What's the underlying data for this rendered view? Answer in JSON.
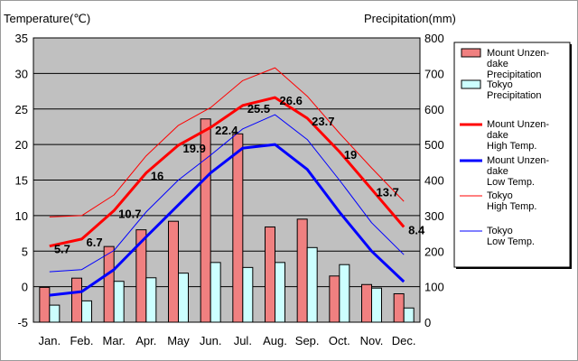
{
  "chart_data": {
    "type": "bar+line",
    "left_axis_title": "Temperature(℃)",
    "right_axis_title": "Precipitation(mm)",
    "categories": [
      "Jan.",
      "Feb.",
      "Mar.",
      "Apr.",
      "May",
      "Jun.",
      "Jul.",
      "Aug.",
      "Sep.",
      "Oct.",
      "Nov.",
      "Dec."
    ],
    "y_left": {
      "min": -5,
      "max": 35,
      "ticks": [
        -5,
        0,
        5,
        10,
        15,
        20,
        25,
        30,
        35
      ]
    },
    "y_right": {
      "min": 0,
      "max": 800,
      "ticks": [
        0,
        100,
        200,
        300,
        400,
        500,
        600,
        700,
        800
      ]
    },
    "bar_series": [
      {
        "name": "Mount Unzen-dake Precipitation",
        "color": "#f08080",
        "values": [
          98,
          124,
          213,
          260,
          284,
          572,
          530,
          268,
          290,
          130,
          106,
          80
        ]
      },
      {
        "name": "Tokyo Precipitation",
        "color": "#ccffff",
        "values": [
          48,
          60,
          115,
          125,
          138,
          168,
          154,
          168,
          210,
          162,
          96,
          40
        ]
      }
    ],
    "line_series": [
      {
        "name": "Mount Unzen-dake High Temp.",
        "color": "#ff0000",
        "width": 3,
        "values": [
          5.7,
          6.7,
          10.7,
          16,
          19.9,
          22.4,
          25.5,
          26.6,
          23.7,
          19,
          13.7,
          8.4
        ],
        "labels": [
          "5.7",
          "6.7",
          "10.7",
          "16",
          "19.9",
          "22.4",
          "25.5",
          "26.6",
          "23.7",
          "19",
          "13.7",
          "8.4"
        ]
      },
      {
        "name": "Mount Unzen-dake Low Temp.",
        "color": "#0000ff",
        "width": 3,
        "values": [
          -1.2,
          -0.7,
          2.4,
          7,
          11.5,
          16,
          19.5,
          20,
          16.5,
          10.5,
          5,
          0.7
        ]
      },
      {
        "name": "Tokyo High Temp.",
        "color": "#ff0000",
        "width": 1,
        "values": [
          9.8,
          10,
          12.9,
          18.4,
          22.7,
          25.2,
          29,
          30.8,
          26.8,
          21.6,
          16.7,
          12
        ]
      },
      {
        "name": "Tokyo Low Temp.",
        "color": "#0000ff",
        "width": 1,
        "values": [
          2.1,
          2.4,
          5.1,
          10.5,
          15,
          18.5,
          22.2,
          24.2,
          20.7,
          15,
          9,
          4.5
        ]
      }
    ],
    "legend": {
      "position": "right",
      "entries": [
        {
          "kind": "bar",
          "color": "#f08080",
          "lines": [
            "Mount Unzen-",
            "dake",
            " Precipitation"
          ]
        },
        {
          "kind": "bar",
          "color": "#ccffff",
          "lines": [
            "Tokyo",
            "Precipitation"
          ]
        },
        {
          "kind": "line",
          "color": "#ff0000",
          "width": 3,
          "lines": [
            "Mount Unzen-",
            "dake",
            " High Temp."
          ]
        },
        {
          "kind": "line",
          "color": "#0000ff",
          "width": 3,
          "lines": [
            "Mount Unzen-",
            "dake",
            " Low Temp."
          ]
        },
        {
          "kind": "line",
          "color": "#ff0000",
          "width": 1,
          "lines": [
            "Tokyo",
            " High Temp."
          ]
        },
        {
          "kind": "line",
          "color": "#0000ff",
          "width": 1,
          "lines": [
            "Tokyo",
            " Low Temp."
          ]
        }
      ]
    },
    "colors": {
      "plot_background": "#c0c0c0",
      "grid": "#000000"
    }
  }
}
